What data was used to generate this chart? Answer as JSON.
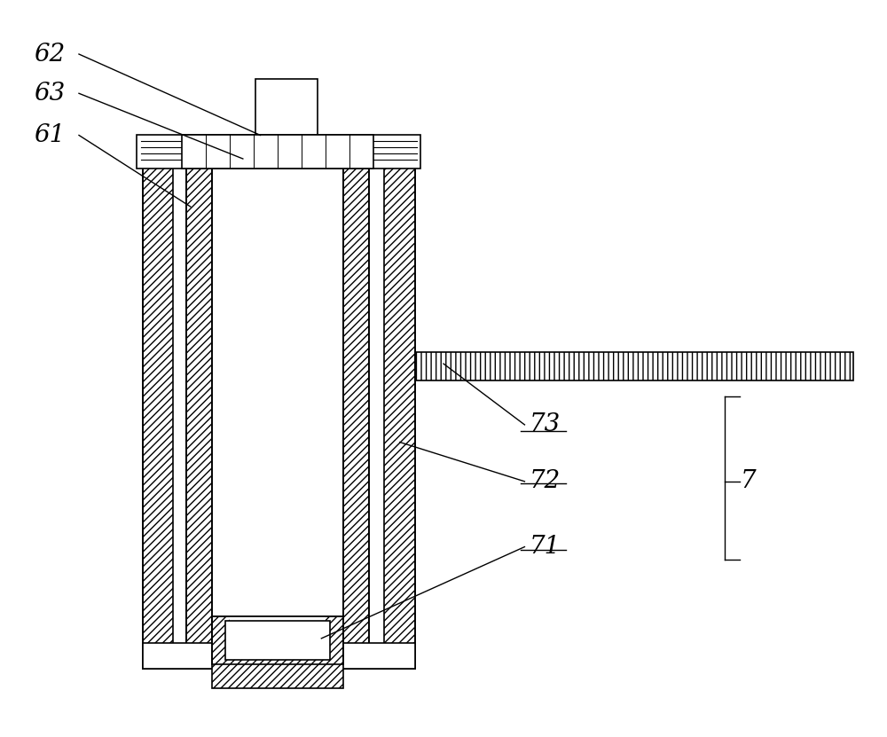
{
  "bg_color": "#ffffff",
  "line_color": "#000000",
  "fig_width": 10.0,
  "fig_height": 8.31,
  "lw": 1.2
}
